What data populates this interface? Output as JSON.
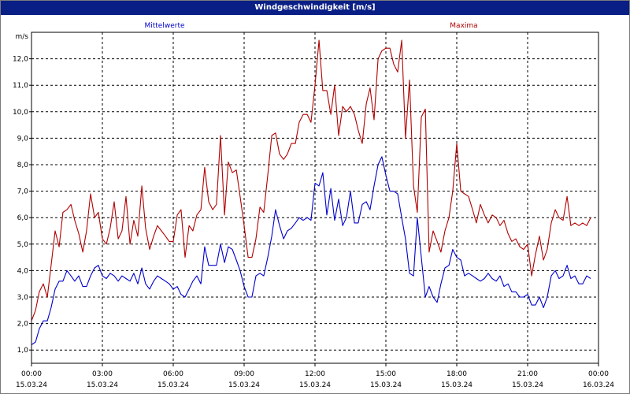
{
  "window": {
    "title": "Windgeschwindigkeit [m/s]"
  },
  "colors": {
    "titlebar": "#0a1f86",
    "mean": "#0000cc",
    "max": "#b00000",
    "grid": "#000000"
  },
  "chart_data": {
    "type": "line",
    "title": "Windgeschwindigkeit [m/s]",
    "ylabel": "m/s",
    "ylim": [
      0.5,
      13.0
    ],
    "yticks": [
      1.0,
      2.0,
      3.0,
      4.0,
      5.0,
      6.0,
      7.0,
      8.0,
      9.0,
      10.0,
      11.0,
      12.0
    ],
    "ytick_labels": [
      "1,0",
      "2,0",
      "3,0",
      "4,0",
      "5,0",
      "6,0",
      "7,0",
      "8,0",
      "9,0",
      "10,0",
      "11,0",
      "12,0"
    ],
    "xlim_hours": [
      0,
      24
    ],
    "xticks": [
      {
        "h": 0,
        "time": "00:00",
        "date": "15.03.24"
      },
      {
        "h": 3,
        "time": "03:00",
        "date": "15.03.24"
      },
      {
        "h": 6,
        "time": "06:00",
        "date": "15.03.24"
      },
      {
        "h": 9,
        "time": "09:00",
        "date": "15.03.24"
      },
      {
        "h": 12,
        "time": "12:00",
        "date": "15.03.24"
      },
      {
        "h": 15,
        "time": "15:00",
        "date": "15.03.24"
      },
      {
        "h": 18,
        "time": "18:00",
        "date": "15.03.24"
      },
      {
        "h": 21,
        "time": "21:00",
        "date": "15.03.24"
      },
      {
        "h": 24,
        "time": "00:00",
        "date": "16.03.24"
      }
    ],
    "grid": true,
    "series": [
      {
        "name": "Mittelwerte",
        "color": "#0000cc",
        "points": [
          [
            0.0,
            1.2
          ],
          [
            0.17,
            1.3
          ],
          [
            0.33,
            1.8
          ],
          [
            0.5,
            2.1
          ],
          [
            0.67,
            2.1
          ],
          [
            0.83,
            2.6
          ],
          [
            1.0,
            3.3
          ],
          [
            1.17,
            3.6
          ],
          [
            1.33,
            3.6
          ],
          [
            1.5,
            4.0
          ],
          [
            1.67,
            3.8
          ],
          [
            1.83,
            3.6
          ],
          [
            2.0,
            3.8
          ],
          [
            2.17,
            3.4
          ],
          [
            2.33,
            3.4
          ],
          [
            2.5,
            3.8
          ],
          [
            2.67,
            4.1
          ],
          [
            2.83,
            4.2
          ],
          [
            3.0,
            3.8
          ],
          [
            3.17,
            3.7
          ],
          [
            3.33,
            3.9
          ],
          [
            3.5,
            3.8
          ],
          [
            3.67,
            3.6
          ],
          [
            3.83,
            3.8
          ],
          [
            4.0,
            3.7
          ],
          [
            4.17,
            3.6
          ],
          [
            4.33,
            3.9
          ],
          [
            4.5,
            3.5
          ],
          [
            4.67,
            4.1
          ],
          [
            4.83,
            3.5
          ],
          [
            5.0,
            3.3
          ],
          [
            5.17,
            3.6
          ],
          [
            5.33,
            3.8
          ],
          [
            5.5,
            3.7
          ],
          [
            5.67,
            3.6
          ],
          [
            5.83,
            3.5
          ],
          [
            6.0,
            3.3
          ],
          [
            6.17,
            3.4
          ],
          [
            6.33,
            3.1
          ],
          [
            6.5,
            3.0
          ],
          [
            6.67,
            3.3
          ],
          [
            6.83,
            3.6
          ],
          [
            7.0,
            3.8
          ],
          [
            7.17,
            3.5
          ],
          [
            7.33,
            4.9
          ],
          [
            7.5,
            4.2
          ],
          [
            7.67,
            4.2
          ],
          [
            7.83,
            4.2
          ],
          [
            8.0,
            5.0
          ],
          [
            8.17,
            4.3
          ],
          [
            8.33,
            4.9
          ],
          [
            8.5,
            4.8
          ],
          [
            8.67,
            4.4
          ],
          [
            8.83,
            4.0
          ],
          [
            9.0,
            3.4
          ],
          [
            9.17,
            3.0
          ],
          [
            9.33,
            3.0
          ],
          [
            9.5,
            3.8
          ],
          [
            9.67,
            3.9
          ],
          [
            9.83,
            3.8
          ],
          [
            10.0,
            4.5
          ],
          [
            10.17,
            5.3
          ],
          [
            10.33,
            6.3
          ],
          [
            10.5,
            5.7
          ],
          [
            10.67,
            5.2
          ],
          [
            10.83,
            5.5
          ],
          [
            11.0,
            5.6
          ],
          [
            11.17,
            5.8
          ],
          [
            11.33,
            6.0
          ],
          [
            11.5,
            5.9
          ],
          [
            11.67,
            6.0
          ],
          [
            11.83,
            5.9
          ],
          [
            12.0,
            7.3
          ],
          [
            12.17,
            7.2
          ],
          [
            12.33,
            7.7
          ],
          [
            12.5,
            6.1
          ],
          [
            12.67,
            7.1
          ],
          [
            12.83,
            5.9
          ],
          [
            13.0,
            6.7
          ],
          [
            13.17,
            5.7
          ],
          [
            13.33,
            6.0
          ],
          [
            13.5,
            7.0
          ],
          [
            13.67,
            5.8
          ],
          [
            13.83,
            5.8
          ],
          [
            14.0,
            6.5
          ],
          [
            14.17,
            6.6
          ],
          [
            14.33,
            6.3
          ],
          [
            14.5,
            7.2
          ],
          [
            14.67,
            8.0
          ],
          [
            14.83,
            8.3
          ],
          [
            15.0,
            7.6
          ],
          [
            15.17,
            7.0
          ],
          [
            15.33,
            7.0
          ],
          [
            15.5,
            6.9
          ],
          [
            15.67,
            6.0
          ],
          [
            15.83,
            5.2
          ],
          [
            16.0,
            3.9
          ],
          [
            16.17,
            3.8
          ],
          [
            16.33,
            6.0
          ],
          [
            16.5,
            4.5
          ],
          [
            16.67,
            3.0
          ],
          [
            16.83,
            3.4
          ],
          [
            17.0,
            3.0
          ],
          [
            17.17,
            2.8
          ],
          [
            17.33,
            3.5
          ],
          [
            17.5,
            4.1
          ],
          [
            17.67,
            4.2
          ],
          [
            17.83,
            4.8
          ],
          [
            18.0,
            4.5
          ],
          [
            18.17,
            4.4
          ],
          [
            18.33,
            3.8
          ],
          [
            18.5,
            3.9
          ],
          [
            18.67,
            3.8
          ],
          [
            18.83,
            3.7
          ],
          [
            19.0,
            3.6
          ],
          [
            19.17,
            3.7
          ],
          [
            19.33,
            3.9
          ],
          [
            19.5,
            3.7
          ],
          [
            19.67,
            3.6
          ],
          [
            19.83,
            3.8
          ],
          [
            20.0,
            3.4
          ],
          [
            20.17,
            3.5
          ],
          [
            20.33,
            3.2
          ],
          [
            20.5,
            3.2
          ],
          [
            20.67,
            3.0
          ],
          [
            20.83,
            3.0
          ],
          [
            21.0,
            3.1
          ],
          [
            21.17,
            2.7
          ],
          [
            21.33,
            2.7
          ],
          [
            21.5,
            3.0
          ],
          [
            21.67,
            2.6
          ],
          [
            21.83,
            3.0
          ],
          [
            22.0,
            3.8
          ],
          [
            22.17,
            4.0
          ],
          [
            22.33,
            3.7
          ],
          [
            22.5,
            3.8
          ],
          [
            22.67,
            4.2
          ],
          [
            22.83,
            3.7
          ],
          [
            23.0,
            3.8
          ],
          [
            23.17,
            3.5
          ],
          [
            23.33,
            3.5
          ],
          [
            23.5,
            3.8
          ],
          [
            23.67,
            3.7
          ]
        ]
      },
      {
        "name": "Maxima",
        "color": "#b00000",
        "points": [
          [
            0.0,
            2.1
          ],
          [
            0.17,
            2.5
          ],
          [
            0.33,
            3.2
          ],
          [
            0.5,
            3.5
          ],
          [
            0.67,
            3.0
          ],
          [
            0.83,
            4.2
          ],
          [
            1.0,
            5.5
          ],
          [
            1.17,
            4.9
          ],
          [
            1.33,
            6.2
          ],
          [
            1.5,
            6.3
          ],
          [
            1.67,
            6.5
          ],
          [
            1.83,
            5.9
          ],
          [
            2.0,
            5.4
          ],
          [
            2.17,
            4.7
          ],
          [
            2.33,
            5.5
          ],
          [
            2.5,
            6.9
          ],
          [
            2.67,
            6.0
          ],
          [
            2.83,
            6.2
          ],
          [
            3.0,
            5.2
          ],
          [
            3.17,
            5.0
          ],
          [
            3.33,
            5.6
          ],
          [
            3.5,
            6.6
          ],
          [
            3.67,
            5.2
          ],
          [
            3.83,
            5.5
          ],
          [
            4.0,
            6.8
          ],
          [
            4.17,
            5.0
          ],
          [
            4.33,
            5.9
          ],
          [
            4.5,
            5.3
          ],
          [
            4.67,
            7.2
          ],
          [
            4.83,
            5.6
          ],
          [
            5.0,
            4.8
          ],
          [
            5.17,
            5.3
          ],
          [
            5.33,
            5.7
          ],
          [
            5.5,
            5.5
          ],
          [
            5.67,
            5.3
          ],
          [
            5.83,
            5.1
          ],
          [
            6.0,
            5.1
          ],
          [
            6.17,
            6.1
          ],
          [
            6.33,
            6.3
          ],
          [
            6.5,
            4.5
          ],
          [
            6.67,
            5.7
          ],
          [
            6.83,
            5.5
          ],
          [
            7.0,
            6.1
          ],
          [
            7.17,
            6.3
          ],
          [
            7.33,
            7.9
          ],
          [
            7.5,
            6.6
          ],
          [
            7.67,
            6.3
          ],
          [
            7.83,
            6.5
          ],
          [
            8.0,
            9.1
          ],
          [
            8.17,
            6.1
          ],
          [
            8.33,
            8.1
          ],
          [
            8.5,
            7.7
          ],
          [
            8.67,
            7.8
          ],
          [
            8.83,
            6.8
          ],
          [
            9.0,
            5.7
          ],
          [
            9.17,
            4.5
          ],
          [
            9.33,
            4.5
          ],
          [
            9.5,
            5.2
          ],
          [
            9.67,
            6.4
          ],
          [
            9.83,
            6.2
          ],
          [
            10.0,
            7.6
          ],
          [
            10.17,
            9.1
          ],
          [
            10.33,
            9.2
          ],
          [
            10.5,
            8.4
          ],
          [
            10.67,
            8.2
          ],
          [
            10.83,
            8.4
          ],
          [
            11.0,
            8.8
          ],
          [
            11.17,
            8.8
          ],
          [
            11.33,
            9.6
          ],
          [
            11.5,
            9.9
          ],
          [
            11.67,
            9.9
          ],
          [
            11.83,
            9.6
          ],
          [
            12.0,
            11.0
          ],
          [
            12.17,
            12.7
          ],
          [
            12.33,
            10.8
          ],
          [
            12.5,
            10.8
          ],
          [
            12.67,
            9.9
          ],
          [
            12.83,
            11.0
          ],
          [
            13.0,
            9.1
          ],
          [
            13.17,
            10.2
          ],
          [
            13.33,
            10.0
          ],
          [
            13.5,
            10.2
          ],
          [
            13.67,
            9.9
          ],
          [
            13.83,
            9.3
          ],
          [
            14.0,
            8.8
          ],
          [
            14.17,
            10.3
          ],
          [
            14.33,
            10.9
          ],
          [
            14.5,
            9.7
          ],
          [
            14.67,
            12.0
          ],
          [
            14.83,
            12.3
          ],
          [
            15.0,
            12.4
          ],
          [
            15.17,
            12.4
          ],
          [
            15.33,
            11.8
          ],
          [
            15.5,
            11.5
          ],
          [
            15.67,
            12.7
          ],
          [
            15.83,
            9.0
          ],
          [
            16.0,
            11.2
          ],
          [
            16.17,
            7.2
          ],
          [
            16.33,
            6.2
          ],
          [
            16.5,
            9.8
          ],
          [
            16.67,
            10.1
          ],
          [
            16.83,
            4.7
          ],
          [
            17.0,
            5.5
          ],
          [
            17.17,
            5.1
          ],
          [
            17.33,
            4.7
          ],
          [
            17.5,
            5.5
          ],
          [
            17.67,
            6.0
          ],
          [
            17.83,
            7.0
          ],
          [
            18.0,
            8.8
          ],
          [
            18.17,
            7.0
          ],
          [
            18.33,
            6.9
          ],
          [
            18.5,
            6.8
          ],
          [
            18.67,
            6.3
          ],
          [
            18.83,
            5.8
          ],
          [
            19.0,
            6.5
          ],
          [
            19.17,
            6.1
          ],
          [
            19.33,
            5.8
          ],
          [
            19.5,
            6.1
          ],
          [
            19.67,
            6.0
          ],
          [
            19.83,
            5.7
          ],
          [
            20.0,
            5.9
          ],
          [
            20.17,
            5.4
          ],
          [
            20.33,
            5.1
          ],
          [
            20.5,
            5.2
          ],
          [
            20.67,
            4.9
          ],
          [
            20.83,
            4.8
          ],
          [
            21.0,
            5.0
          ],
          [
            21.17,
            3.8
          ],
          [
            21.33,
            4.6
          ],
          [
            21.5,
            5.3
          ],
          [
            21.67,
            4.4
          ],
          [
            21.83,
            4.8
          ],
          [
            22.0,
            5.8
          ],
          [
            22.17,
            6.3
          ],
          [
            22.33,
            6.0
          ],
          [
            22.5,
            5.9
          ],
          [
            22.67,
            6.8
          ],
          [
            22.83,
            5.7
          ],
          [
            23.0,
            5.8
          ],
          [
            23.17,
            5.7
          ],
          [
            23.33,
            5.8
          ],
          [
            23.5,
            5.7
          ],
          [
            23.67,
            6.0
          ]
        ]
      }
    ]
  }
}
